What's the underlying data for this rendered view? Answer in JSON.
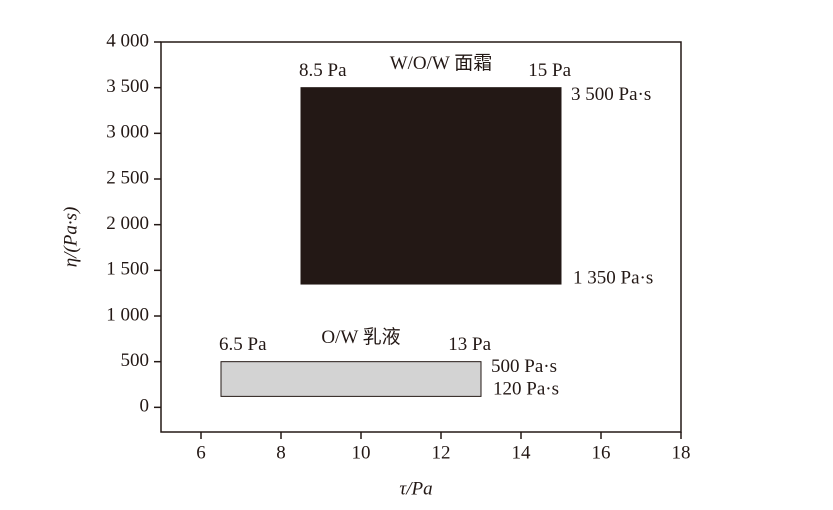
{
  "chart_data": {
    "type": "region",
    "xlabel": "τ/Pa",
    "ylabel": "η/(Pa·s)",
    "xlim": [
      5,
      18
    ],
    "xticks": [
      6,
      8,
      10,
      12,
      14,
      16,
      18
    ],
    "ylim": [
      -270,
      4000
    ],
    "yticks": [
      0,
      500,
      {
        "value": 1000,
        "label": "1 000"
      },
      {
        "value": 1500,
        "label": "1 500"
      },
      {
        "value": 2000,
        "label": "2 000"
      },
      {
        "value": 2500,
        "label": "2 500"
      },
      {
        "value": 3000,
        "label": "3 000"
      },
      {
        "value": 3500,
        "label": "3 500"
      },
      {
        "value": 4000,
        "label": "4 000"
      }
    ],
    "series": [
      {
        "name": "W/O/W 面霜",
        "color": "#231815",
        "x": [
          8.5,
          15
        ],
        "x_labels": [
          "8.5 Pa",
          "15 Pa"
        ],
        "values": [
          1350,
          3500
        ],
        "value_labels": [
          "1 350 Pa·s",
          "3 500 Pa·s"
        ]
      },
      {
        "name": "O/W 乳液",
        "color": "#d3d3d3",
        "x": [
          6.5,
          13
        ],
        "x_labels": [
          "6.5 Pa",
          "13 Pa"
        ],
        "values": [
          120,
          500
        ],
        "value_labels": [
          "120 Pa·s",
          "500 Pa·s"
        ]
      }
    ]
  }
}
